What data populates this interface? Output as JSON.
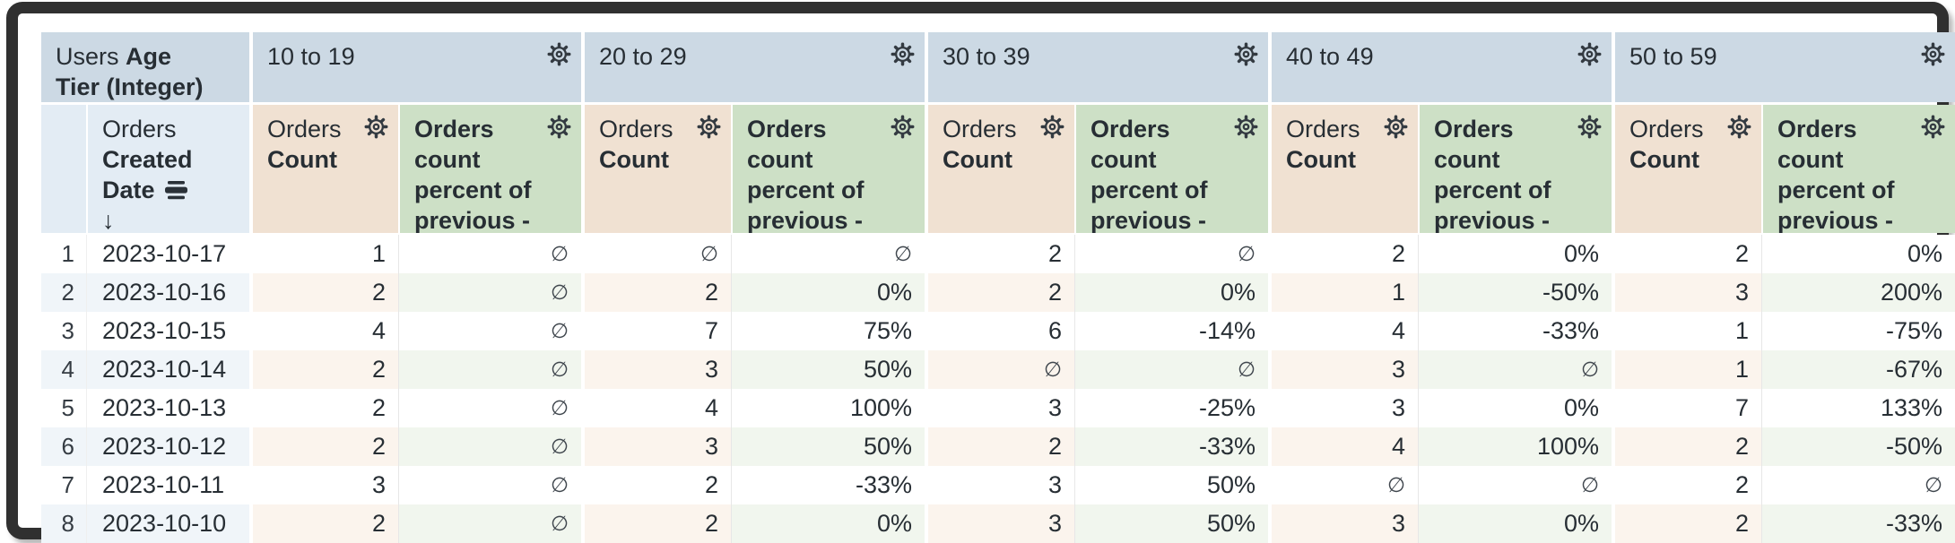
{
  "table": {
    "dimension_header": {
      "view": "Users",
      "field": "Age Tier (Integer)"
    },
    "row_field_header": {
      "view": "Orders",
      "field": "Created Date",
      "sort_arrow": "↓"
    },
    "pivot_values": [
      "10 to 19",
      "20 to 29",
      "30 to 39",
      "40 to 49",
      "50 to 59"
    ],
    "measure_headers": {
      "count": {
        "view": "Orders",
        "field": "Count"
      },
      "percent": {
        "label": "Orders count percent of previous - across rows"
      }
    },
    "null_symbol": "∅",
    "rows": [
      {
        "num": "1",
        "date": "2023-10-17",
        "values": [
          "1",
          "∅",
          "∅",
          "∅",
          "2",
          "∅",
          "2",
          "0%",
          "2",
          "0%"
        ]
      },
      {
        "num": "2",
        "date": "2023-10-16",
        "values": [
          "2",
          "∅",
          "2",
          "0%",
          "2",
          "0%",
          "1",
          "-50%",
          "3",
          "200%"
        ]
      },
      {
        "num": "3",
        "date": "2023-10-15",
        "values": [
          "4",
          "∅",
          "7",
          "75%",
          "6",
          "-14%",
          "4",
          "-33%",
          "1",
          "-75%"
        ]
      },
      {
        "num": "4",
        "date": "2023-10-14",
        "values": [
          "2",
          "∅",
          "3",
          "50%",
          "∅",
          "∅",
          "3",
          "∅",
          "1",
          "-67%"
        ]
      },
      {
        "num": "5",
        "date": "2023-10-13",
        "values": [
          "2",
          "∅",
          "4",
          "100%",
          "3",
          "-25%",
          "3",
          "0%",
          "7",
          "133%"
        ]
      },
      {
        "num": "6",
        "date": "2023-10-12",
        "values": [
          "2",
          "∅",
          "3",
          "50%",
          "2",
          "-33%",
          "4",
          "100%",
          "2",
          "-50%"
        ]
      },
      {
        "num": "7",
        "date": "2023-10-11",
        "values": [
          "3",
          "∅",
          "2",
          "-33%",
          "3",
          "50%",
          "∅",
          "∅",
          "2",
          "∅"
        ]
      },
      {
        "num": "8",
        "date": "2023-10-10",
        "values": [
          "2",
          "∅",
          "2",
          "0%",
          "3",
          "50%",
          "3",
          "0%",
          "2",
          "-33%"
        ]
      }
    ]
  },
  "colors": {
    "pivot_header_bg": "#ccd9e4",
    "date_header_bg": "#e3ecf4",
    "count_header_bg": "#f0e1d2",
    "percent_header_bg": "#cde0c6",
    "alt_row_blue": "#f0f5f9",
    "alt_row_tan": "#fbf4ed",
    "alt_row_green": "#f1f6ee",
    "text": "#272e34",
    "frame": "#303030"
  }
}
